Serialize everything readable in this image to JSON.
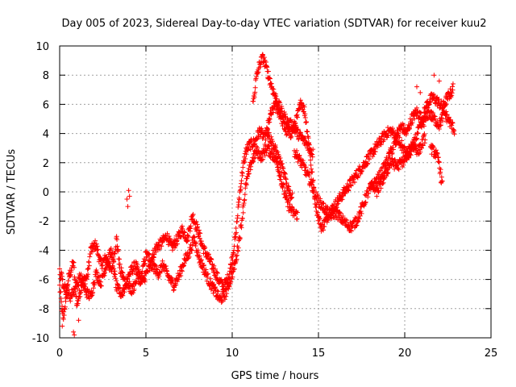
{
  "chart_data": {
    "type": "scatter",
    "title": "Day 005 of 2023, Sidereal Day-to-day VTEC variation (SDTVAR) for receiver kuu2",
    "xlabel": "GPS time / hours",
    "ylabel": "SDTVAR / TECUs",
    "xlim": [
      0,
      25
    ],
    "ylim": [
      -10,
      10
    ],
    "x_ticks": [
      "0",
      "5",
      "10",
      "15",
      "20",
      "25"
    ],
    "y_ticks": [
      "-10",
      "-8",
      "-6",
      "-4",
      "-2",
      "0",
      "2",
      "4",
      "6",
      "8",
      "10"
    ],
    "grid": true,
    "marker": "+",
    "color": "#ff0000",
    "series": [
      {
        "name": "SDTVAR",
        "tracks": [
          [
            [
              0.0,
              -6.5
            ],
            [
              0.2,
              -8.8
            ],
            [
              0.5,
              -6.0
            ],
            [
              0.8,
              -4.8
            ],
            [
              1.0,
              -7.8
            ],
            [
              1.3,
              -6.2
            ],
            [
              1.6,
              -5.8
            ],
            [
              1.8,
              -4.0
            ],
            [
              2.1,
              -3.6
            ],
            [
              2.4,
              -5.0
            ],
            [
              2.7,
              -4.5
            ],
            [
              3.0,
              -5.5
            ],
            [
              3.3,
              -3.2
            ],
            [
              3.5,
              -5.3
            ],
            [
              3.8,
              -6.2
            ],
            [
              4.1,
              -5.5
            ],
            [
              4.4,
              -5.0
            ],
            [
              4.7,
              -6.0
            ],
            [
              5.0,
              -4.3
            ],
            [
              5.3,
              -4.6
            ],
            [
              5.6,
              -3.8
            ],
            [
              5.9,
              -3.5
            ],
            [
              6.2,
              -3.0
            ],
            [
              6.5,
              -3.8
            ],
            [
              6.8,
              -3.3
            ],
            [
              7.1,
              -2.6
            ],
            [
              7.4,
              -3.2
            ],
            [
              7.7,
              -1.6
            ],
            [
              8.0,
              -2.6
            ],
            [
              8.3,
              -3.8
            ],
            [
              8.6,
              -4.5
            ],
            [
              8.9,
              -5.2
            ],
            [
              9.2,
              -6.0
            ],
            [
              9.5,
              -6.5
            ],
            [
              9.8,
              -5.8
            ],
            [
              10.0,
              -4.5
            ],
            [
              10.2,
              -3.0
            ],
            [
              10.4,
              -0.5
            ],
            [
              10.6,
              1.5
            ],
            [
              10.8,
              2.8
            ],
            [
              11.0,
              3.2
            ],
            [
              11.3,
              3.4
            ],
            [
              11.6,
              4.2
            ],
            [
              11.9,
              3.6
            ],
            [
              12.2,
              5.2
            ],
            [
              12.5,
              6.0
            ],
            [
              12.8,
              5.2
            ],
            [
              13.1,
              4.2
            ],
            [
              13.4,
              4.0
            ],
            [
              13.7,
              4.8
            ],
            [
              14.0,
              6.2
            ],
            [
              14.2,
              5.5
            ],
            [
              14.4,
              3.8
            ],
            [
              14.6,
              1.5
            ],
            [
              14.8,
              -0.5
            ],
            [
              15.0,
              -1.8
            ],
            [
              15.2,
              -2.5
            ],
            [
              15.4,
              -2.0
            ],
            [
              15.6,
              -1.5
            ],
            [
              15.9,
              -1.0
            ],
            [
              16.2,
              -0.5
            ],
            [
              16.5,
              0.0
            ],
            [
              16.8,
              0.5
            ],
            [
              17.1,
              1.0
            ],
            [
              17.4,
              1.5
            ],
            [
              17.7,
              2.0
            ],
            [
              18.0,
              2.5
            ],
            [
              18.3,
              3.0
            ],
            [
              18.6,
              3.5
            ],
            [
              18.9,
              4.0
            ],
            [
              19.2,
              4.2
            ],
            [
              19.5,
              3.8
            ],
            [
              19.8,
              4.5
            ],
            [
              20.1,
              4.0
            ],
            [
              20.4,
              5.0
            ],
            [
              20.7,
              5.5
            ],
            [
              21.0,
              5.0
            ],
            [
              21.3,
              6.0
            ],
            [
              21.6,
              6.5
            ],
            [
              21.9,
              6.2
            ],
            [
              22.2,
              5.8
            ],
            [
              22.5,
              6.5
            ],
            [
              22.8,
              7.0
            ]
          ],
          [
            [
              0.0,
              -5.5
            ],
            [
              0.3,
              -6.5
            ],
            [
              0.6,
              -7.2
            ],
            [
              0.9,
              -6.6
            ],
            [
              1.2,
              -5.8
            ],
            [
              1.5,
              -6.8
            ],
            [
              1.8,
              -7.2
            ],
            [
              2.1,
              -5.6
            ],
            [
              2.4,
              -6.2
            ],
            [
              2.7,
              -5.0
            ],
            [
              3.0,
              -4.0
            ],
            [
              3.3,
              -6.6
            ],
            [
              3.6,
              -7.0
            ],
            [
              3.9,
              -6.2
            ],
            [
              4.2,
              -6.8
            ],
            [
              4.5,
              -5.8
            ],
            [
              4.8,
              -6.2
            ],
            [
              5.1,
              -5.4
            ],
            [
              5.4,
              -5.0
            ],
            [
              5.7,
              -5.6
            ],
            [
              6.0,
              -5.0
            ],
            [
              6.3,
              -5.8
            ],
            [
              6.6,
              -6.4
            ],
            [
              6.9,
              -5.8
            ],
            [
              7.2,
              -4.8
            ],
            [
              7.5,
              -4.2
            ],
            [
              7.8,
              -3.2
            ],
            [
              8.1,
              -4.6
            ],
            [
              8.4,
              -5.4
            ],
            [
              8.7,
              -6.2
            ],
            [
              9.0,
              -6.8
            ],
            [
              9.3,
              -7.4
            ],
            [
              9.6,
              -7.0
            ],
            [
              9.9,
              -6.0
            ],
            [
              10.2,
              -4.8
            ],
            [
              10.5,
              -2.5
            ],
            [
              10.8,
              0.5
            ],
            [
              11.1,
              2.0
            ],
            [
              11.4,
              2.8
            ],
            [
              11.7,
              2.4
            ],
            [
              12.0,
              3.0
            ],
            [
              12.3,
              2.6
            ],
            [
              12.6,
              2.0
            ],
            [
              12.9,
              0.5
            ],
            [
              13.2,
              -0.8
            ],
            [
              13.5,
              -1.4
            ],
            [
              13.8,
              -1.6
            ]
          ],
          [
            [
              11.2,
              6.0
            ],
            [
              11.4,
              7.8
            ],
            [
              11.6,
              8.8
            ],
            [
              11.8,
              9.2
            ],
            [
              12.0,
              8.4
            ],
            [
              12.3,
              7.2
            ],
            [
              12.6,
              6.2
            ],
            [
              12.9,
              5.4
            ],
            [
              13.2,
              4.8
            ],
            [
              13.5,
              4.5
            ],
            [
              13.8,
              4.0
            ],
            [
              14.1,
              3.6
            ],
            [
              14.4,
              3.2
            ],
            [
              14.7,
              2.6
            ]
          ],
          [
            [
              12.0,
              4.2
            ],
            [
              12.3,
              3.4
            ],
            [
              12.6,
              2.6
            ],
            [
              12.9,
              1.6
            ],
            [
              13.2,
              0.4
            ],
            [
              13.5,
              -0.5
            ]
          ],
          [
            [
              13.6,
              2.8
            ],
            [
              13.9,
              2.2
            ],
            [
              14.2,
              1.6
            ],
            [
              14.5,
              0.8
            ],
            [
              14.8,
              -0.2
            ],
            [
              15.1,
              -0.8
            ],
            [
              15.4,
              -1.2
            ],
            [
              15.7,
              -1.6
            ],
            [
              16.0,
              -1.4
            ],
            [
              16.3,
              -1.8
            ],
            [
              16.6,
              -2.2
            ],
            [
              16.9,
              -2.4
            ],
            [
              17.2,
              -2.0
            ],
            [
              17.5,
              -1.2
            ],
            [
              17.8,
              -0.2
            ],
            [
              18.1,
              0.4
            ],
            [
              18.4,
              0.8
            ],
            [
              18.7,
              1.4
            ],
            [
              19.0,
              2.2
            ],
            [
              19.3,
              3.0
            ],
            [
              19.6,
              3.6
            ],
            [
              19.9,
              3.0
            ],
            [
              20.2,
              2.4
            ],
            [
              20.5,
              3.2
            ],
            [
              20.8,
              4.2
            ],
            [
              21.1,
              4.8
            ],
            [
              21.4,
              5.4
            ],
            [
              21.7,
              5.0
            ],
            [
              22.0,
              4.6
            ],
            [
              22.3,
              5.4
            ],
            [
              22.6,
              4.8
            ],
            [
              22.9,
              4.2
            ]
          ],
          [
            [
              18.0,
              0.5
            ],
            [
              18.4,
              0.0
            ],
            [
              18.8,
              1.0
            ],
            [
              19.2,
              2.0
            ],
            [
              19.6,
              1.8
            ],
            [
              20.0,
              2.2
            ],
            [
              20.4,
              3.2
            ],
            [
              20.8,
              2.8
            ],
            [
              21.2,
              3.8
            ]
          ],
          [
            [
              21.5,
              3.0
            ],
            [
              21.8,
              2.6
            ],
            [
              22.0,
              2.0
            ],
            [
              22.1,
              1.0
            ],
            [
              22.2,
              0.4
            ]
          ]
        ],
        "isolated_points": [
          [
            0.15,
            -9.2
          ],
          [
            0.35,
            -7.5
          ],
          [
            0.8,
            -9.6
          ],
          [
            0.85,
            -9.8
          ],
          [
            1.1,
            -8.8
          ],
          [
            3.9,
            -0.5
          ],
          [
            3.95,
            -1.0
          ],
          [
            4.0,
            0.1
          ],
          [
            4.05,
            -0.3
          ],
          [
            20.7,
            7.2
          ],
          [
            20.9,
            6.8
          ],
          [
            21.7,
            8.0
          ],
          [
            22.0,
            7.6
          ],
          [
            22.8,
            7.4
          ]
        ]
      }
    ]
  }
}
